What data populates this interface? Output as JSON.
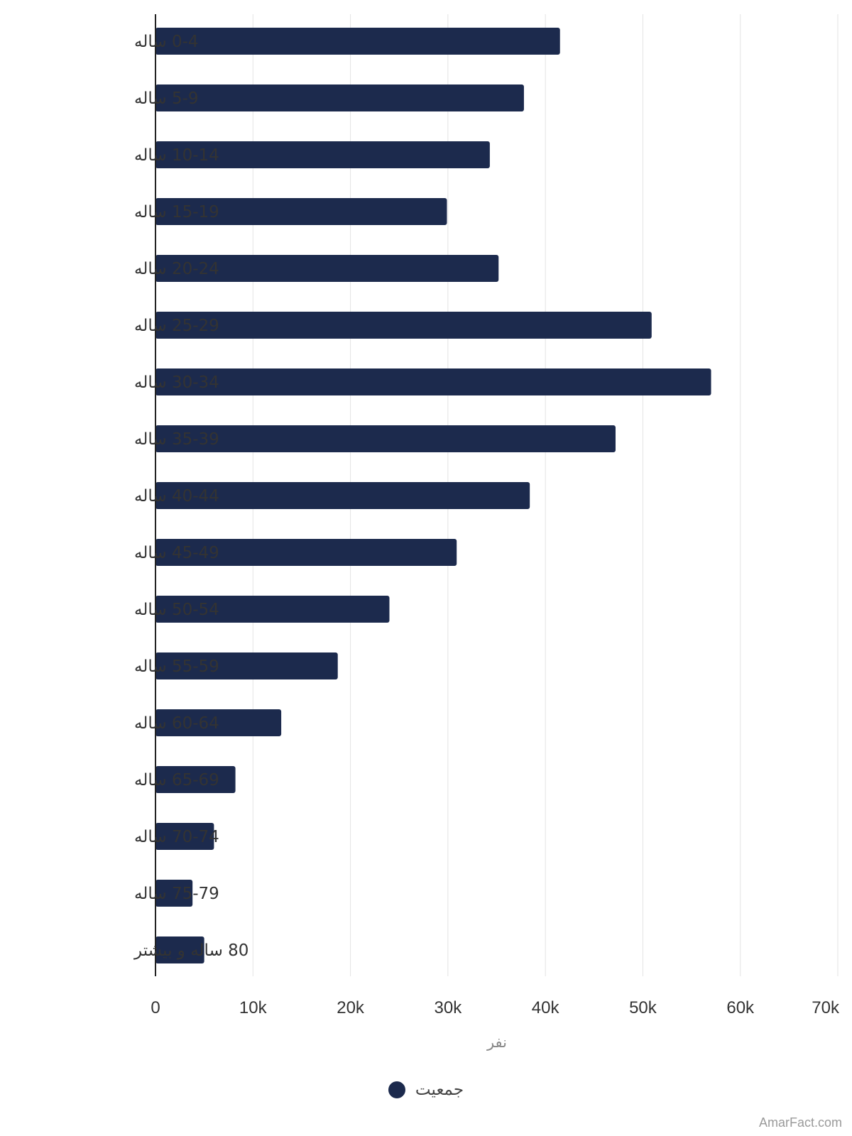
{
  "chart_data": {
    "type": "bar",
    "orientation": "horizontal",
    "categories": [
      "0-4 ساله",
      "5-9 ساله",
      "10-14 ساله",
      "15-19 ساله",
      "20-24 ساله",
      "25-29 ساله",
      "30-34 ساله",
      "35-39 ساله",
      "40-44 ساله",
      "45-49 ساله",
      "50-54 ساله",
      "55-59 ساله",
      "60-64 ساله",
      "65-69 ساله",
      "70-74 ساله",
      "75-79 ساله",
      "80 ساله و بیشتر"
    ],
    "series": [
      {
        "name": "جمعیت",
        "color": "#1c2a4d",
        "values": [
          41500,
          37800,
          34300,
          29900,
          35200,
          50900,
          57000,
          47200,
          38400,
          30900,
          24000,
          18700,
          12900,
          8200,
          6000,
          3800,
          5000
        ]
      }
    ],
    "xlabel": "نفر",
    "ylabel": "",
    "xlim": [
      0,
      70000
    ],
    "xticks": [
      0,
      10000,
      20000,
      30000,
      40000,
      50000,
      60000,
      70000
    ],
    "xtick_labels": [
      "0",
      "10k",
      "20k",
      "30k",
      "40k",
      "50k",
      "60k",
      "70k"
    ],
    "grid": "vertical",
    "legend_position": "bottom-center"
  },
  "legend": {
    "label": "جمعیت",
    "color": "#1c2a4d"
  },
  "credit": "AmarFact.com"
}
